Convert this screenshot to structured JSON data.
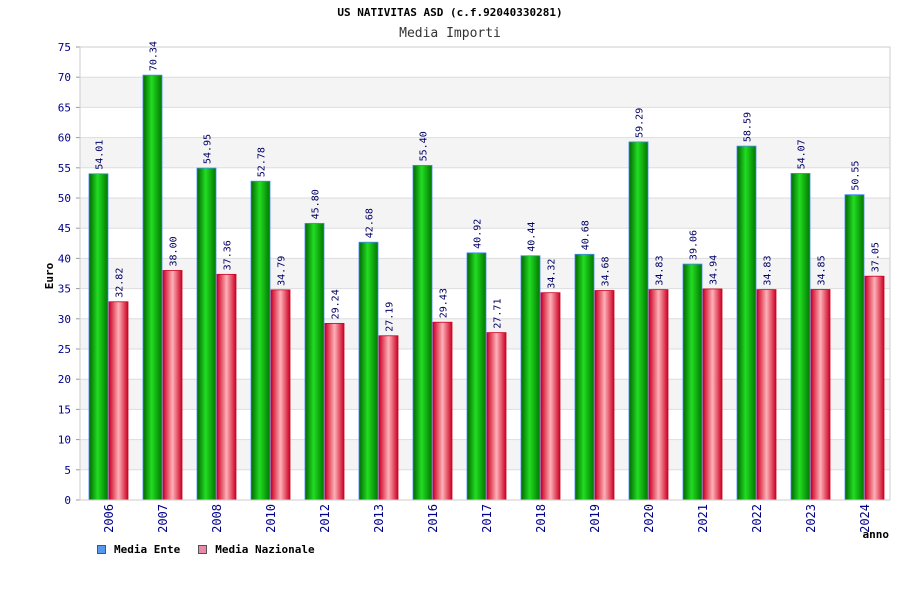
{
  "chart_data": {
    "type": "bar",
    "title": "US NATIVITAS ASD (c.f.92040330281)",
    "subtitle": "Media Importi",
    "xlabel": "anno",
    "ylabel": "Euro",
    "ylim": [
      0,
      75
    ],
    "yticks": [
      0,
      5,
      10,
      15,
      20,
      25,
      30,
      35,
      40,
      45,
      50,
      55,
      60,
      65,
      70,
      75
    ],
    "grid": true,
    "legend_position": "bottom-left",
    "categories": [
      "2006",
      "2007",
      "2008",
      "2010",
      "2012",
      "2013",
      "2016",
      "2017",
      "2018",
      "2019",
      "2020",
      "2021",
      "2022",
      "2023",
      "2024"
    ],
    "series": [
      {
        "name": "Media Ente",
        "color": "#00aa00",
        "legend_color": "#5599ee",
        "values": [
          54.01,
          70.34,
          54.95,
          52.78,
          45.8,
          42.68,
          55.4,
          40.92,
          40.44,
          40.68,
          59.29,
          39.06,
          58.59,
          54.07,
          50.55
        ],
        "labels": [
          "54.01",
          "70.34",
          "54.95",
          "52.78",
          "45.80",
          "42.68",
          "55.40",
          "40.92",
          "40.44",
          "40.68",
          "59.29",
          "39.06",
          "58.59",
          "54.07",
          "50.55"
        ]
      },
      {
        "name": "Media Nazionale",
        "color": "#ee2233",
        "legend_color": "#ee88aa",
        "values": [
          32.82,
          38.0,
          37.36,
          34.79,
          29.24,
          27.19,
          29.43,
          27.71,
          34.32,
          34.68,
          34.83,
          34.94,
          34.83,
          34.85,
          37.05
        ],
        "labels": [
          "32.82",
          "38.00",
          "37.36",
          "34.79",
          "29.24",
          "27.19",
          "29.43",
          "27.71",
          "34.32",
          "34.68",
          "34.83",
          "34.94",
          "34.83",
          "34.85",
          "37.05"
        ]
      }
    ]
  }
}
